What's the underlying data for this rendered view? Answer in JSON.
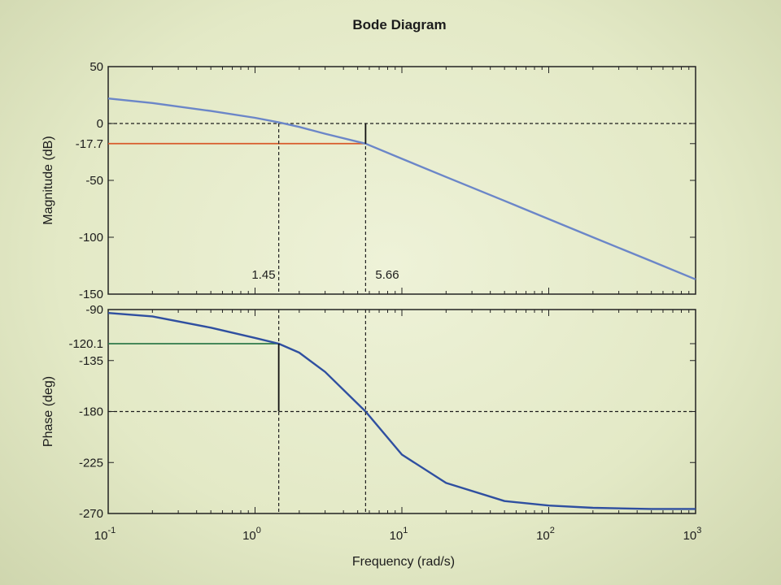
{
  "chart_data": {
    "type": "line",
    "title": "Bode Diagram",
    "xlabel": "Frequency  (rad/s)",
    "x_scale": "log",
    "xlim": [
      0.1,
      1000
    ],
    "x_ticks": [
      {
        "base": "10",
        "exp": "-1"
      },
      {
        "base": "10",
        "exp": "0"
      },
      {
        "base": "10",
        "exp": "1"
      },
      {
        "base": "10",
        "exp": "2"
      },
      {
        "base": "10",
        "exp": "3"
      }
    ],
    "grid": false,
    "subplots": [
      {
        "name": "magnitude",
        "ylabel": "Magnitude (dB)",
        "ylim": [
          -150,
          50
        ],
        "y_ticks": [
          "50",
          "0",
          "-17.7",
          "-50",
          "-100",
          "-150"
        ],
        "series": [
          {
            "color": "#6b86c8",
            "x": [
              0.1,
              0.2,
              0.5,
              1,
              1.45,
              2,
              3,
              5.66,
              10,
              20,
              50,
              100,
              200,
              500,
              1000
            ],
            "y": [
              22,
              18,
              11,
              5,
              1,
              -3,
              -9,
              -17.7,
              -31,
              -47,
              -68,
              -84,
              -100,
              -121,
              -137
            ]
          }
        ],
        "reference_lines": [
          {
            "kind": "horizontal",
            "y": 0,
            "style": "dashed",
            "color": "#1c1c1c"
          },
          {
            "kind": "horizontal",
            "y": -17.7,
            "x_to": 5.66,
            "style": "solid",
            "color": "#d85a2a"
          }
        ],
        "annotations": [
          "1.45",
          "5.66"
        ]
      },
      {
        "name": "phase",
        "ylabel": "Phase (deg)",
        "ylim": [
          -270,
          -90
        ],
        "y_ticks": [
          "-90",
          "-120.1",
          "-135",
          "-180",
          "-225",
          "-270"
        ],
        "series": [
          {
            "color": "#2f4fa0",
            "x": [
              0.1,
              0.2,
              0.5,
              1,
              1.45,
              2,
              3,
              5.66,
              10,
              20,
              50,
              100,
              200,
              500,
              1000
            ],
            "y": [
              -93,
              -96,
              -106,
              -115,
              -120.1,
              -128,
              -145,
              -180,
              -218,
              -243,
              -259,
              -263,
              -265,
              -266,
              -266
            ]
          }
        ],
        "reference_lines": [
          {
            "kind": "horizontal",
            "y": -180,
            "style": "dashed",
            "color": "#1c1c1c"
          },
          {
            "kind": "horizontal",
            "y": -120.1,
            "x_to": 1.45,
            "style": "solid",
            "color": "#2f7a4a"
          }
        ]
      }
    ],
    "crossovers": [
      {
        "x": 1.45,
        "label": "1.45"
      },
      {
        "x": 5.66,
        "label": "5.66"
      }
    ]
  }
}
